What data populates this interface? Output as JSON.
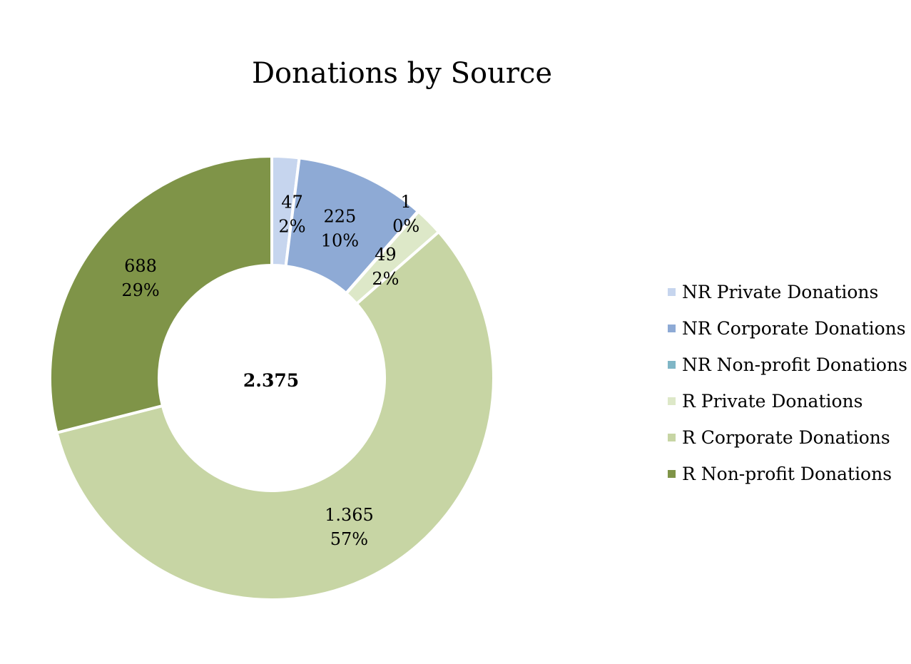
{
  "chart_data": {
    "type": "pie",
    "title": "Donations by Source",
    "total_label": "2.375",
    "legend_position": "right",
    "slices": [
      {
        "name": "NR Private Donations",
        "value": 47,
        "value_label": "47",
        "percent_label": "2%",
        "color": "#C6D5EE"
      },
      {
        "name": "NR Corporate Donations",
        "value": 225,
        "value_label": "225",
        "percent_label": "10%",
        "color": "#8EAAD5"
      },
      {
        "name": "NR Non-profit Donations",
        "value": 1,
        "value_label": "1",
        "percent_label": "0%",
        "color": "#7FB6C6"
      },
      {
        "name": "R Private Donations",
        "value": 49,
        "value_label": "49",
        "percent_label": "2%",
        "color": "#DDE8C8"
      },
      {
        "name": "R Corporate Donations",
        "value": 1365,
        "value_label": "1.365",
        "percent_label": "57%",
        "color": "#C7D5A4"
      },
      {
        "name": "R Non-profit Donations",
        "value": 688,
        "value_label": "688",
        "percent_label": "29%",
        "color": "#7F9448"
      }
    ]
  }
}
